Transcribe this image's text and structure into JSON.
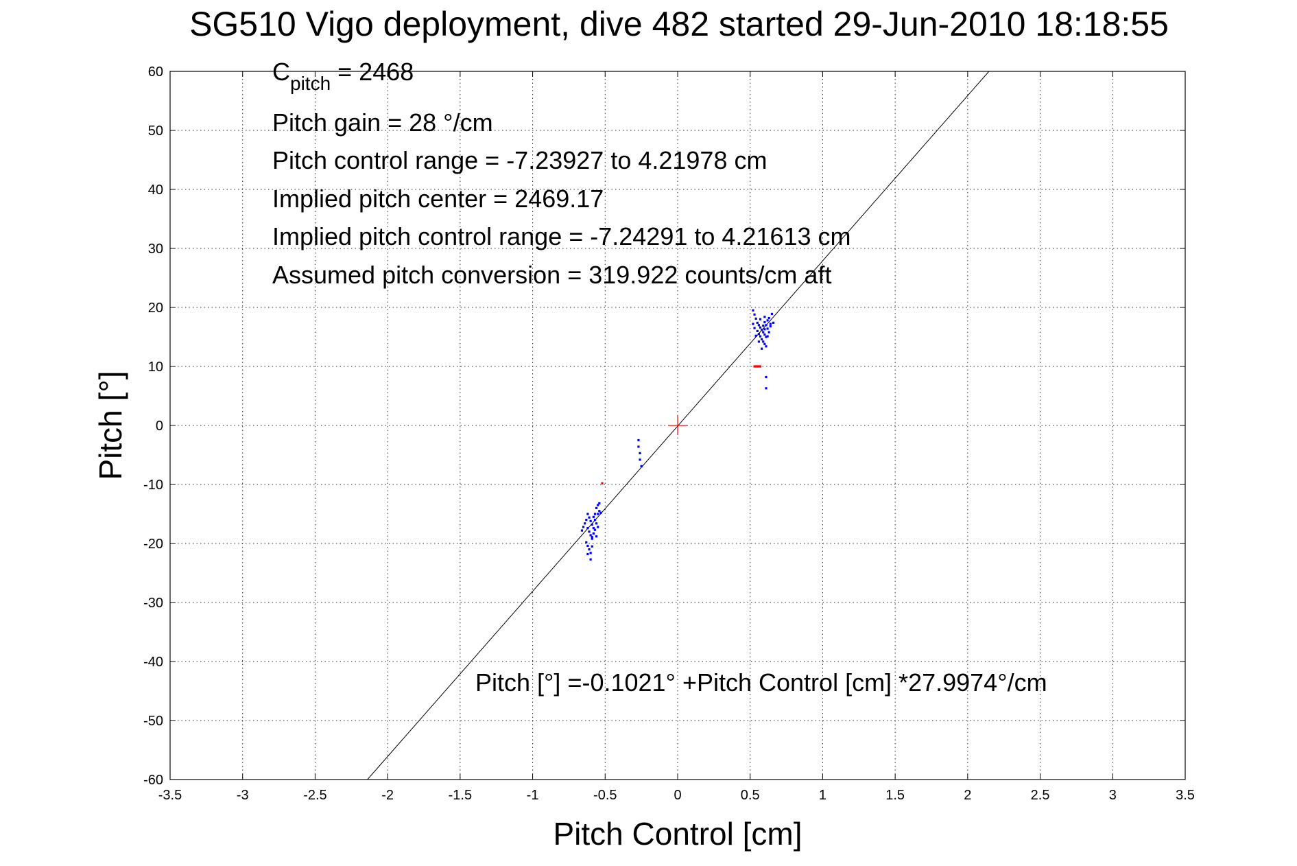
{
  "chart_data": {
    "type": "scatter",
    "title": "SG510 Vigo deployment, dive 482 started 29-Jun-2010 18:18:55",
    "xlabel": "Pitch Control [cm]",
    "ylabel": "Pitch [°]",
    "xlim": [
      -3.5,
      3.5
    ],
    "ylim": [
      -60,
      60
    ],
    "x_ticks": [
      -3.5,
      -3,
      -2.5,
      -2,
      -1.5,
      -1,
      -0.5,
      0,
      0.5,
      1,
      1.5,
      2,
      2.5,
      3,
      3.5
    ],
    "y_ticks": [
      -60,
      -50,
      -40,
      -30,
      -20,
      -10,
      0,
      10,
      20,
      30,
      40,
      50,
      60
    ],
    "x_tick_labels": [
      "-3.5",
      "-3",
      "-2.5",
      "-2",
      "-1.5",
      "-1",
      "-0.5",
      "0",
      "0.5",
      "1",
      "1.5",
      "2",
      "2.5",
      "3",
      "3.5"
    ],
    "y_tick_labels": [
      "-60",
      "-50",
      "-40",
      "-30",
      "-20",
      "-10",
      "0",
      "10",
      "20",
      "30",
      "40",
      "50",
      "60"
    ],
    "grid": true,
    "annotations": {
      "c_pitch_base": "C",
      "c_pitch_sub": "pitch",
      "c_pitch_value": " = 2468",
      "lines": [
        "Pitch gain = 28 °/cm",
        "Pitch control range = -7.23927 to 4.21978 cm",
        "Implied pitch center = 2469.17",
        "Implied pitch control range = -7.24291 to 4.21613 cm",
        "Assumed pitch conversion = 319.922 counts/cm aft"
      ],
      "fit_label": "Pitch [°] =-0.1021° +Pitch Control [cm] *27.9974°/cm"
    },
    "fit_line": {
      "intercept": -0.1021,
      "slope": 27.9974,
      "color": "#000000"
    },
    "center_marker": {
      "x": 0,
      "y": 0,
      "color": "#ff0000"
    },
    "series": [
      {
        "color": "#0000ff",
        "points": [
          [
            0.52,
            19.5
          ],
          [
            0.53,
            18.8
          ],
          [
            0.54,
            18.1
          ],
          [
            0.55,
            17.4
          ],
          [
            0.56,
            17.0
          ],
          [
            0.57,
            16.6
          ],
          [
            0.58,
            16.2
          ],
          [
            0.59,
            15.8
          ],
          [
            0.6,
            15.4
          ],
          [
            0.61,
            15.0
          ],
          [
            0.55,
            16.0
          ],
          [
            0.56,
            15.5
          ],
          [
            0.57,
            15.1
          ],
          [
            0.58,
            14.6
          ],
          [
            0.59,
            14.2
          ],
          [
            0.6,
            13.8
          ],
          [
            0.61,
            13.4
          ],
          [
            0.62,
            17.8
          ],
          [
            0.63,
            18.2
          ],
          [
            0.64,
            17.2
          ],
          [
            0.62,
            16.4
          ],
          [
            0.63,
            15.8
          ],
          [
            0.64,
            16.8
          ],
          [
            0.65,
            18.9
          ],
          [
            0.6,
            17.5
          ],
          [
            0.61,
            17.0
          ],
          [
            0.54,
            15.2
          ],
          [
            0.56,
            14.2
          ],
          [
            0.58,
            13.0
          ],
          [
            0.59,
            16.9
          ],
          [
            0.6,
            16.3
          ],
          [
            0.62,
            15.1
          ],
          [
            0.53,
            16.5
          ],
          [
            0.57,
            18.0
          ],
          [
            0.6,
            18.4
          ],
          [
            0.66,
            17.4
          ],
          [
            0.52,
            17.2
          ],
          [
            0.61,
            8.2
          ],
          [
            0.61,
            6.3
          ],
          [
            -0.27,
            -2.5
          ],
          [
            -0.27,
            -3.6
          ],
          [
            -0.26,
            -4.7
          ],
          [
            -0.26,
            -5.8
          ],
          [
            -0.25,
            -6.9
          ],
          [
            -0.62,
            -15.0
          ],
          [
            -0.61,
            -15.6
          ],
          [
            -0.6,
            -16.2
          ],
          [
            -0.59,
            -16.8
          ],
          [
            -0.58,
            -17.4
          ],
          [
            -0.62,
            -17.4
          ],
          [
            -0.61,
            -18.0
          ],
          [
            -0.6,
            -18.6
          ],
          [
            -0.59,
            -19.2
          ],
          [
            -0.63,
            -19.8
          ],
          [
            -0.62,
            -20.4
          ],
          [
            -0.61,
            -21.0
          ],
          [
            -0.6,
            -21.6
          ],
          [
            -0.6,
            -22.7
          ],
          [
            -0.58,
            -15.5
          ],
          [
            -0.57,
            -16.0
          ],
          [
            -0.56,
            -16.6
          ],
          [
            -0.55,
            -15.0
          ],
          [
            -0.54,
            -14.5
          ],
          [
            -0.56,
            -14.0
          ],
          [
            -0.55,
            -13.5
          ],
          [
            -0.54,
            -13.2
          ],
          [
            -0.57,
            -17.7
          ],
          [
            -0.58,
            -18.3
          ],
          [
            -0.59,
            -18.9
          ],
          [
            -0.64,
            -16.6
          ],
          [
            -0.65,
            -17.2
          ],
          [
            -0.63,
            -16.0
          ],
          [
            -0.57,
            -15.0
          ],
          [
            -0.59,
            -20.5
          ],
          [
            -0.66,
            -17.8
          ],
          [
            -0.55,
            -17.2
          ],
          [
            -0.56,
            -18.8
          ],
          [
            -0.62,
            -21.8
          ],
          [
            -0.53,
            -14.8
          ]
        ]
      },
      {
        "color": "#ff0000",
        "points": [
          [
            0.53,
            10.0
          ],
          [
            0.54,
            10.0
          ],
          [
            0.55,
            10.0
          ],
          [
            0.56,
            10.0
          ],
          [
            0.57,
            10.0
          ],
          [
            -0.52,
            -9.8
          ]
        ]
      }
    ]
  }
}
